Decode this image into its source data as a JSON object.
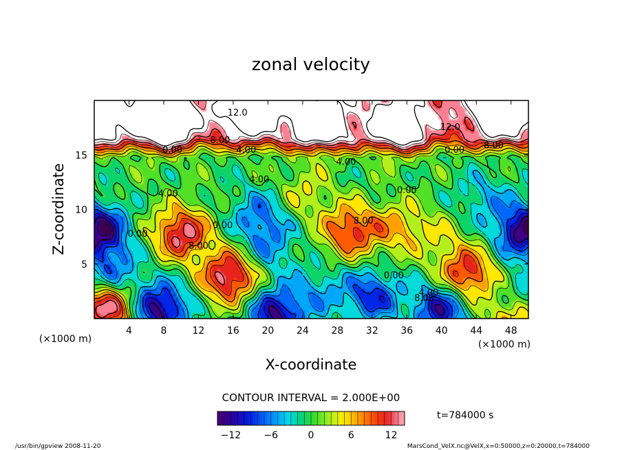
{
  "chart_data": {
    "type": "heatmap",
    "title": "zonal velocity",
    "xlabel": "X-coordinate",
    "ylabel": "Z-coordinate",
    "x_unit": "(×1000 m)",
    "z_unit": "(×1000 m)",
    "xlim": [
      0,
      50
    ],
    "zlim": [
      0,
      20
    ],
    "x_ticks": [
      "4",
      "8",
      "12",
      "16",
      "20",
      "24",
      "28",
      "32",
      "36",
      "40",
      "44",
      "48"
    ],
    "z_ticks": [
      "5",
      "10",
      "15"
    ],
    "contour_interval_text": "CONTOUR INTERVAL = 2.000E+00",
    "time_text": "t=784000 s",
    "colorbar": {
      "range": [
        -14,
        14
      ],
      "ticks": [
        "−12",
        "−6",
        "0",
        "6",
        "12"
      ]
    },
    "contour_labels": [
      {
        "text": "12.0",
        "x": 16.5,
        "z": 18.6
      },
      {
        "text": "12.0",
        "x": 41.0,
        "z": 17.3
      },
      {
        "text": "8.00",
        "x": 14.5,
        "z": 16.1
      },
      {
        "text": "8.00",
        "x": 46.0,
        "z": 15.6
      },
      {
        "text": "0.00",
        "x": 9.0,
        "z": 15.2
      },
      {
        "text": "4.00",
        "x": 17.5,
        "z": 15.2
      },
      {
        "text": "0.00",
        "x": 41.5,
        "z": 15.2
      },
      {
        "text": "4.00",
        "x": 29.0,
        "z": 14.1
      },
      {
        "text": "4.00",
        "x": 19.0,
        "z": 12.5
      },
      {
        "text": "0.00",
        "x": 36.0,
        "z": 11.5
      },
      {
        "text": "4.00",
        "x": 8.5,
        "z": 11.2
      },
      {
        "text": "8.00",
        "x": 31.0,
        "z": 8.7
      },
      {
        "text": "0.00",
        "x": 14.8,
        "z": 8.3
      },
      {
        "text": "0.00",
        "x": 5.0,
        "z": 7.5
      },
      {
        "text": "8.00",
        "x": 12.0,
        "z": 6.4
      },
      {
        "text": "0.00",
        "x": 34.5,
        "z": 3.7
      },
      {
        "text": "4.00",
        "x": 38.5,
        "z": 2.1
      },
      {
        "text": "8.00",
        "x": 38.0,
        "z": 1.6
      }
    ],
    "features": [
      {
        "x": 0,
        "z": 18.5,
        "value": 14
      },
      {
        "x": 8,
        "z": 18.0,
        "value": 16
      },
      {
        "x": 18,
        "z": 19.2,
        "value": 15
      },
      {
        "x": 26,
        "z": 17.8,
        "value": 13
      },
      {
        "x": 35,
        "z": 17.5,
        "value": 12
      },
      {
        "x": 47,
        "z": 19.0,
        "value": 16
      },
      {
        "x": 10,
        "z": 7.8,
        "value": 13
      },
      {
        "x": 29.5,
        "z": 8.0,
        "value": 11
      },
      {
        "x": 35,
        "z": 8.3,
        "value": 6
      },
      {
        "x": 15.5,
        "z": 3.8,
        "value": 14
      },
      {
        "x": 43,
        "z": 4.0,
        "value": 12
      },
      {
        "x": 24,
        "z": 11.5,
        "value": 4
      },
      {
        "x": 40,
        "z": 7.5,
        "value": 3
      },
      {
        "x": 0.3,
        "z": 8.0,
        "value": -14
      },
      {
        "x": 49.7,
        "z": 8.0,
        "value": -14
      },
      {
        "x": 2,
        "z": 4.0,
        "value": -7
      },
      {
        "x": 19,
        "z": 9.5,
        "value": -6
      },
      {
        "x": 20,
        "z": 6.5,
        "value": -5
      },
      {
        "x": 7.5,
        "z": 0.8,
        "value": -13
      },
      {
        "x": 21,
        "z": 0.3,
        "value": -12
      },
      {
        "x": 32,
        "z": 2.0,
        "value": -9
      },
      {
        "x": 40,
        "z": 0.8,
        "value": -11
      },
      {
        "x": 49,
        "z": 1.5,
        "value": -10
      },
      {
        "x": 1.5,
        "z": 1.0,
        "value": 14
      },
      {
        "x": 48.5,
        "z": 0.6,
        "value": 13
      },
      {
        "x": 26,
        "z": 2.5,
        "value": -4
      },
      {
        "x": 45,
        "z": 11.0,
        "value": -4
      }
    ]
  },
  "footer": {
    "left": "/usr/bin/gpview   2008-11-20",
    "right": "MarsCond_VelX.nc@VelX,x=0:50000,z=0:20000,t=784000"
  }
}
